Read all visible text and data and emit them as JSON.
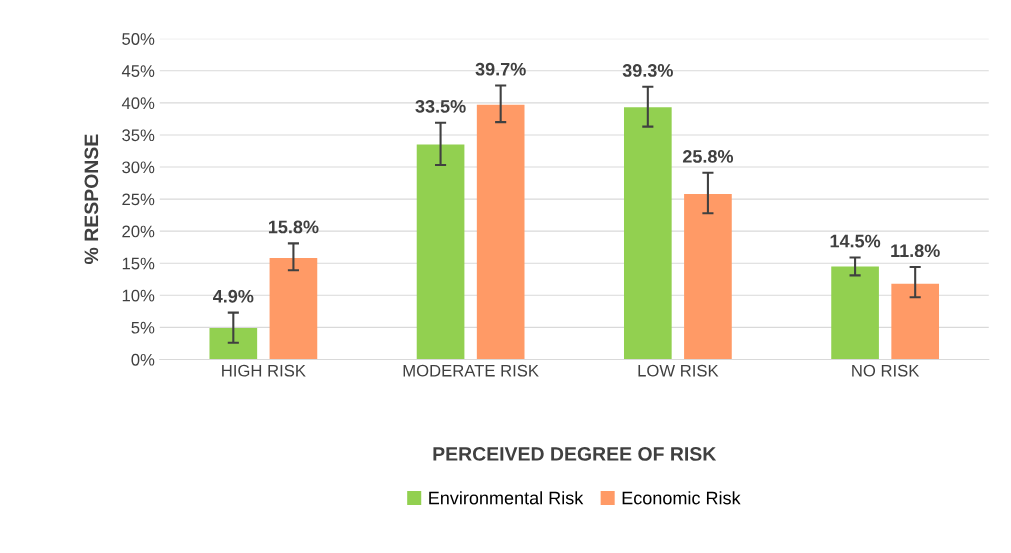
{
  "chart_data": {
    "type": "bar",
    "xlabel": "PERCEIVED DEGREE OF RISK",
    "ylabel": "% RESPONSE",
    "categories": [
      "HIGH RISK",
      "MODERATE RISK",
      "LOW RISK",
      "NO RISK"
    ],
    "series": [
      {
        "name": "Environmental Risk",
        "color": "#92d050",
        "values": [
          4.9,
          33.5,
          39.3,
          14.5
        ],
        "value_labels": [
          "4.9%",
          "33.5%",
          "39.3%",
          "14.5%"
        ],
        "errors": [
          [
            2.6,
            7.3
          ],
          [
            30.3,
            36.9
          ],
          [
            36.3,
            42.5
          ],
          [
            13.1,
            15.9
          ]
        ]
      },
      {
        "name": "Economic Risk",
        "color": "#ff9a66",
        "values": [
          15.8,
          39.7,
          25.8,
          11.8
        ],
        "value_labels": [
          "15.8%",
          "39.7%",
          "25.8%",
          "11.8%"
        ],
        "errors": [
          [
            13.9,
            18.1
          ],
          [
            37.0,
            42.7
          ],
          [
            22.8,
            29.1
          ],
          [
            9.7,
            14.4
          ]
        ]
      }
    ],
    "ylim": [
      0,
      50
    ],
    "yticks": [
      {
        "value": 0,
        "label": "0%"
      },
      {
        "value": 5,
        "label": "5%"
      },
      {
        "value": 10,
        "label": "10%"
      },
      {
        "value": 15,
        "label": "15%"
      },
      {
        "value": 20,
        "label": "20%"
      },
      {
        "value": 25,
        "label": "25%"
      },
      {
        "value": 30,
        "label": "30%"
      },
      {
        "value": 35,
        "label": "35%"
      },
      {
        "value": 40,
        "label": "40%"
      },
      {
        "value": 45,
        "label": "45%"
      },
      {
        "value": 50,
        "label": "50%"
      }
    ],
    "grid": "y",
    "legend": "bottom"
  }
}
